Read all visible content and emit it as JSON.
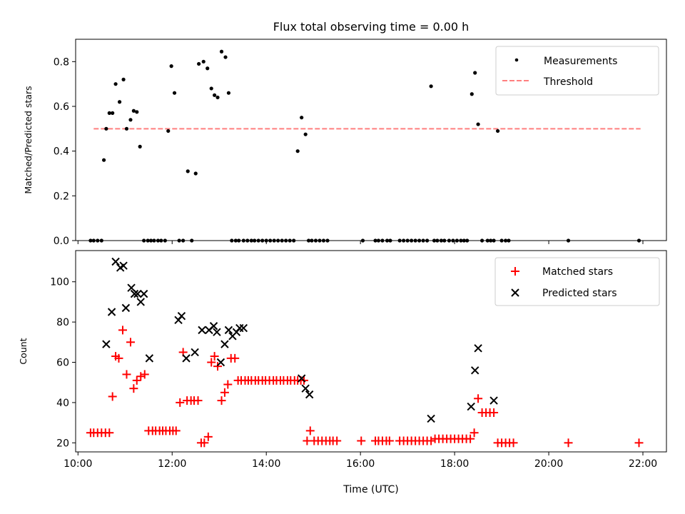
{
  "title": "Flux total observing time = 0.00 h",
  "xlabel": "Time (UTC)",
  "x_tick_labels": [
    "10:00",
    "12:00",
    "14:00",
    "16:00",
    "18:00",
    "20:00",
    "22:00"
  ],
  "colors": {
    "matched": "#ff0000",
    "predicted": "#000000",
    "threshold": "#ff7f7f",
    "measurements": "#000000"
  },
  "chart_data": [
    {
      "type": "scatter",
      "panel": "top",
      "ylabel": "Matched/Predicted stars",
      "y_tick_labels": [
        "0.0",
        "0.2",
        "0.4",
        "0.6",
        "0.8"
      ],
      "xlim": [
        "09:57",
        "22:30"
      ],
      "ylim": [
        0,
        0.9
      ],
      "legend_position": "upper right",
      "threshold": {
        "name": "Threshold",
        "value": 0.5,
        "x_start": "10:20",
        "x_end": "21:57",
        "style": "dashed"
      },
      "series": [
        {
          "name": "Measurements",
          "x": [
            "10:16",
            "10:20",
            "10:25",
            "10:30",
            "10:33",
            "10:36",
            "10:40",
            "10:44",
            "10:48",
            "10:53",
            "10:58",
            "11:02",
            "11:07",
            "11:11",
            "11:15",
            "11:19",
            "11:24",
            "11:29",
            "11:33",
            "11:37",
            "11:42",
            "11:46",
            "11:51",
            "11:55",
            "11:59",
            "12:03",
            "12:09",
            "12:14",
            "12:20",
            "12:25",
            "12:30",
            "12:34",
            "12:40",
            "12:45",
            "12:50",
            "12:54",
            "12:58",
            "13:03",
            "13:08",
            "13:12",
            "13:16",
            "13:21",
            "13:25",
            "13:31",
            "13:36",
            "13:41",
            "13:45",
            "13:50",
            "13:55",
            "14:00",
            "14:05",
            "14:10",
            "14:15",
            "14:20",
            "14:25",
            "14:30",
            "14:35",
            "14:40",
            "14:45",
            "14:50",
            "14:54",
            "14:58",
            "15:03",
            "15:08",
            "15:13",
            "15:18",
            "16:03",
            "16:19",
            "16:23",
            "16:28",
            "16:34",
            "16:38",
            "16:50",
            "16:55",
            "17:00",
            "17:05",
            "17:10",
            "17:15",
            "17:20",
            "17:25",
            "17:30",
            "17:34",
            "17:38",
            "17:43",
            "17:47",
            "17:53",
            "17:58",
            "18:03",
            "18:08",
            "18:12",
            "18:16",
            "18:22",
            "18:26",
            "18:30",
            "18:35",
            "18:42",
            "18:46",
            "18:50",
            "18:55",
            "19:00",
            "19:05",
            "19:09",
            "20:25",
            "21:55"
          ],
          "y": [
            0,
            0,
            0,
            0,
            0.36,
            0.5,
            0.57,
            0.57,
            0.7,
            0.62,
            0.72,
            0.5,
            0.54,
            0.58,
            0.575,
            0.42,
            0,
            0,
            0,
            0,
            0,
            0,
            0,
            0.49,
            0.78,
            0.66,
            0,
            0,
            0.31,
            0,
            0.3,
            0.79,
            0.8,
            0.77,
            0.68,
            0.65,
            0.64,
            0.845,
            0.82,
            0.66,
            0,
            0,
            0,
            0,
            0,
            0,
            0,
            0,
            0,
            0,
            0,
            0,
            0,
            0,
            0,
            0,
            0,
            0.4,
            0.55,
            0.475,
            0,
            0,
            0,
            0,
            0,
            0,
            0,
            0,
            0,
            0,
            0,
            0,
            0,
            0,
            0,
            0,
            0,
            0,
            0,
            0,
            0.69,
            0,
            0,
            0,
            0,
            0,
            0,
            0,
            0,
            0,
            0,
            0.655,
            0.75,
            0.52,
            0,
            0,
            0,
            0,
            0.49,
            0,
            0,
            0,
            0,
            0
          ]
        }
      ]
    },
    {
      "type": "scatter",
      "panel": "bottom",
      "ylabel": "Count",
      "y_tick_labels": [
        "20",
        "40",
        "60",
        "80",
        "100"
      ],
      "xlim": [
        "09:57",
        "22:30"
      ],
      "ylim": [
        15.5,
        115.5
      ],
      "legend_position": "upper right",
      "series": [
        {
          "name": "Matched stars",
          "marker": "+",
          "x": [
            "10:16",
            "10:20",
            "10:25",
            "10:30",
            "10:35",
            "10:40",
            "10:44",
            "10:48",
            "10:52",
            "10:57",
            "11:02",
            "11:07",
            "11:11",
            "11:15",
            "11:20",
            "11:25",
            "11:30",
            "11:35",
            "11:39",
            "11:44",
            "11:48",
            "11:52",
            "11:57",
            "12:01",
            "12:05",
            "12:10",
            "12:14",
            "12:19",
            "12:24",
            "12:28",
            "12:33",
            "12:37",
            "12:41",
            "12:46",
            "12:50",
            "12:54",
            "12:58",
            "13:03",
            "13:07",
            "13:11",
            "13:15",
            "13:20",
            "13:24",
            "13:28",
            "13:33",
            "13:37",
            "13:41",
            "13:46",
            "13:50",
            "13:55",
            "13:59",
            "14:04",
            "14:09",
            "14:13",
            "14:18",
            "14:22",
            "14:27",
            "14:31",
            "14:36",
            "14:40",
            "14:44",
            "14:48",
            "14:52",
            "14:56",
            "15:01",
            "15:06",
            "15:11",
            "15:16",
            "15:21",
            "15:25",
            "15:30",
            "16:01",
            "16:19",
            "16:23",
            "16:28",
            "16:33",
            "16:37",
            "16:50",
            "16:55",
            "17:00",
            "17:05",
            "17:10",
            "17:15",
            "17:20",
            "17:25",
            "17:30",
            "17:35",
            "17:40",
            "17:45",
            "17:50",
            "17:55",
            "18:00",
            "18:05",
            "18:10",
            "18:15",
            "18:20",
            "18:25",
            "18:30",
            "18:35",
            "18:40",
            "18:45",
            "18:50",
            "18:55",
            "19:00",
            "19:05",
            "19:10",
            "19:15",
            "20:25",
            "21:55"
          ],
          "y": [
            25,
            25,
            25,
            25,
            25,
            25,
            43,
            63,
            62,
            76,
            54,
            70,
            47,
            51,
            53,
            54,
            26,
            26,
            26,
            26,
            26,
            26,
            26,
            26,
            26,
            40,
            65,
            41,
            41,
            41,
            41,
            20,
            20,
            23,
            60,
            63,
            58,
            41,
            45,
            49,
            62,
            62,
            51,
            51,
            51,
            51,
            51,
            51,
            51,
            51,
            51,
            51,
            51,
            51,
            51,
            51,
            51,
            51,
            51,
            51,
            51,
            51,
            21,
            26,
            21,
            21,
            21,
            21,
            21,
            21,
            21,
            21,
            21,
            21,
            21,
            21,
            21,
            21,
            21,
            21,
            21,
            21,
            21,
            21,
            21,
            21,
            22,
            22,
            22,
            22,
            22,
            22,
            22,
            22,
            22,
            22,
            25,
            42,
            35,
            35,
            35,
            35,
            20,
            20,
            20,
            20,
            20,
            20,
            20
          ]
        },
        {
          "name": "Predicted stars",
          "marker": "x",
          "x": [
            "10:36",
            "10:43",
            "10:48",
            "10:54",
            "10:58",
            "11:01",
            "11:08",
            "11:12",
            "11:16",
            "11:20",
            "11:24",
            "11:31",
            "12:08",
            "12:12",
            "12:18",
            "12:29",
            "12:38",
            "12:47",
            "12:53",
            "12:57",
            "13:02",
            "13:07",
            "13:12",
            "13:17",
            "13:22",
            "13:26",
            "13:31",
            "14:45",
            "14:50",
            "14:55",
            "17:30",
            "18:21",
            "18:26",
            "18:30",
            "18:50"
          ],
          "y": [
            69,
            85,
            110,
            107,
            108,
            87,
            97,
            94,
            94,
            90,
            94,
            62,
            81,
            83,
            62,
            65,
            76,
            76,
            78,
            75,
            60,
            69,
            76,
            73,
            75,
            77,
            77,
            52,
            47,
            44,
            32,
            38,
            56,
            67,
            41
          ]
        }
      ]
    }
  ]
}
